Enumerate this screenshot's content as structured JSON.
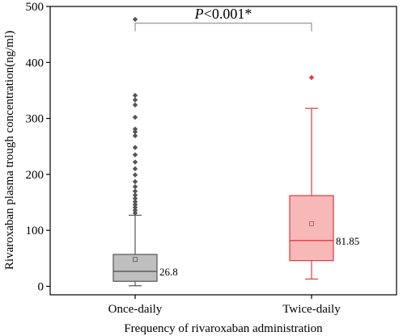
{
  "chart_data": {
    "type": "box",
    "xlabel": "Frequency of rivaroxaban administration",
    "ylabel": "Rivaroxaban plasma trough concentration(ng/ml)",
    "ylim": [
      0,
      500
    ],
    "yticks": [
      0,
      100,
      200,
      300,
      400,
      500
    ],
    "categories": [
      "Once-daily",
      "Twice-daily"
    ],
    "significance": {
      "italic": "P",
      "text": "<0.001*"
    },
    "series": [
      {
        "category": "Once-daily",
        "whisker_low": 1,
        "q1": 9,
        "median": 26.8,
        "q3": 57,
        "whisker_high": 127,
        "mean": 48,
        "median_label": "26.8",
        "outliers": [
          131,
          136,
          141,
          146,
          151,
          157,
          163,
          170,
          178,
          187,
          199,
          210,
          222,
          235,
          248,
          269,
          276,
          281,
          302,
          324,
          333,
          341,
          477
        ],
        "fill": "#bfbfbf",
        "stroke": "#555555"
      },
      {
        "category": "Twice-daily",
        "whisker_low": 13,
        "q1": 46,
        "median": 81.85,
        "q3": 162,
        "whisker_high": 318,
        "mean": 112,
        "median_label": "81.85",
        "outliers": [
          373
        ],
        "fill": "#f7b8b8",
        "stroke": "#e33b3b"
      }
    ],
    "grid": false
  }
}
